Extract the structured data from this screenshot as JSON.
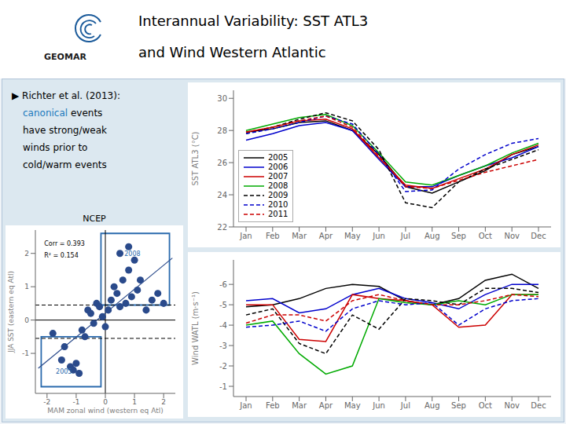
{
  "title": "Interannual Variability: SST ATL3",
  "subtitle": "and Wind Western Atlantic",
  "logo_text": "GEOMAR",
  "notes": [
    [
      {
        "text": "▶ Richter et al. (2013):"
      }
    ],
    [
      {
        "text": "canonical",
        "color": "#1a7abd"
      },
      {
        "text": " events"
      }
    ],
    [
      {
        "text": "have strong/weak"
      }
    ],
    [
      {
        "text": "winds prior to"
      }
    ],
    [
      {
        "text": "cold/warm events"
      }
    ]
  ],
  "chart_data": [
    {
      "type": "scatter",
      "title": "NCEP",
      "x_label": "MAM zonal wind (western eq Atl)",
      "y_label": "JJA SST (eastern eq Atl)",
      "x": [
        -1.8,
        -1.5,
        -1.4,
        -1.2,
        -1.1,
        -1.0,
        -0.9,
        -0.8,
        -0.7,
        -0.6,
        -0.5,
        -0.4,
        -0.3,
        -0.2,
        -0.1,
        0.0,
        0.1,
        0.2,
        0.3,
        0.4,
        0.5,
        0.6,
        0.7,
        0.8,
        0.9,
        1.0,
        1.1,
        1.2,
        1.4,
        1.6,
        1.8,
        2.0,
        0.5,
        0.8
      ],
      "values": [
        -0.4,
        -1.2,
        -0.8,
        -1.4,
        -1.5,
        -1.3,
        -1.6,
        -0.3,
        -0.5,
        0.3,
        0.2,
        -0.1,
        0.5,
        0.4,
        0.1,
        -0.2,
        0.3,
        0.6,
        1.0,
        0.8,
        0.4,
        1.2,
        0.5,
        1.5,
        0.7,
        1.8,
        0.9,
        1.2,
        0.3,
        0.6,
        0.8,
        0.5,
        2.0,
        2.2
      ],
      "color": "#2a4a8b",
      "fit_line": {
        "x": [
          -2.3,
          2.3
        ],
        "values": [
          -1.4459,
          1.8609
        ],
        "color": "#2a4a8b"
      },
      "reference_lines": [
        {
          "axis": "y",
          "value": 0,
          "color": "#000000",
          "line_style": "solid"
        },
        {
          "axis": "x",
          "value": 0,
          "color": "#000000",
          "line_style": "solid"
        },
        {
          "axis": "y",
          "value": 0.45,
          "color": "#000000",
          "line_style": "dashed"
        },
        {
          "axis": "y",
          "value": -0.55,
          "color": "#000000",
          "line_style": "dashed"
        }
      ],
      "boxes": [
        {
          "x": [
            -0.15,
            2.2
          ],
          "y": [
            0.45,
            2.6
          ],
          "color": "#2a6aad"
        },
        {
          "x": [
            -2.2,
            -0.15
          ],
          "y": [
            -2.0,
            -0.5
          ],
          "color": "#2a6aad"
        }
      ],
      "annotations": [
        {
          "text": "2008",
          "x": 0.6,
          "y": 2.0,
          "color": "#2a6aad"
        },
        {
          "text": "2005",
          "x": -1.75,
          "y": -1.55,
          "color": "#2a6aad"
        },
        {
          "text": "Corr = 0.393",
          "x": -2.15,
          "y": 2.3,
          "color": "#000000"
        },
        {
          "text": "R² = 0.154",
          "x": -2.15,
          "y": 1.95,
          "color": "#000000"
        }
      ],
      "xlim": [
        -2.4,
        2.4
      ],
      "ylim": [
        -2.2,
        2.7
      ],
      "xticks": [
        -2,
        -1,
        0,
        1,
        2
      ],
      "yticks": [
        -1,
        0,
        1,
        2
      ],
      "grid": false
    },
    {
      "type": "line",
      "y_label": "SST ATL3 (°C)",
      "categories": [
        "Jan",
        "Feb",
        "Mar",
        "Apr",
        "May",
        "Jun",
        "Jul",
        "Aug",
        "Sep",
        "Oct",
        "Nov",
        "Dec"
      ],
      "series": [
        {
          "name": "2005",
          "color": "#000000",
          "line_style": "solid",
          "values": [
            27.9,
            28.1,
            28.5,
            28.6,
            28.0,
            26.5,
            24.5,
            24.1,
            24.8,
            25.5,
            26.5,
            27.0
          ]
        },
        {
          "name": "2006",
          "color": "#0000cc",
          "line_style": "solid",
          "values": [
            27.4,
            27.8,
            28.3,
            28.5,
            28.0,
            26.2,
            24.5,
            24.5,
            25.2,
            25.8,
            26.3,
            27.0
          ]
        },
        {
          "name": "2007",
          "color": "#cc0000",
          "line_style": "solid",
          "values": [
            27.9,
            28.2,
            28.6,
            28.7,
            28.1,
            26.3,
            24.6,
            24.4,
            25.0,
            25.6,
            26.5,
            27.1
          ]
        },
        {
          "name": "2008",
          "color": "#00aa00",
          "line_style": "solid",
          "values": [
            28.0,
            28.4,
            28.8,
            29.0,
            28.3,
            26.6,
            24.8,
            24.6,
            25.2,
            25.8,
            26.6,
            27.2
          ]
        },
        {
          "name": "2009",
          "color": "#000000",
          "line_style": "dashed",
          "values": [
            27.8,
            28.2,
            28.7,
            29.1,
            28.6,
            26.8,
            23.5,
            23.2,
            24.8,
            25.6,
            26.2,
            26.8
          ]
        },
        {
          "name": "2010",
          "color": "#0000cc",
          "line_style": "dashed",
          "values": [
            27.8,
            28.1,
            28.5,
            28.9,
            28.4,
            26.5,
            24.2,
            24.3,
            25.6,
            26.5,
            27.2,
            27.5
          ]
        },
        {
          "name": "2011",
          "color": "#cc0000",
          "line_style": "dashed",
          "values": [
            27.9,
            28.2,
            28.6,
            28.9,
            28.2,
            26.4,
            24.5,
            24.4,
            24.9,
            25.4,
            25.8,
            26.2
          ]
        }
      ],
      "ylim": [
        22,
        30.5
      ],
      "yticks": [
        22,
        24,
        26,
        28,
        30
      ],
      "legend": "lower left",
      "grid": false
    },
    {
      "type": "line",
      "y_label": "Wind WATL (m·s⁻¹)",
      "categories": [
        "Jan",
        "Feb",
        "Mar",
        "Apr",
        "May",
        "Jun",
        "Jul",
        "Aug",
        "Sep",
        "Oct",
        "Nov",
        "Dec"
      ],
      "series": [
        {
          "name": "2005",
          "color": "#000000",
          "line_style": "solid",
          "values": [
            -4.9,
            -5.0,
            -5.3,
            -5.8,
            -6.0,
            -5.9,
            -5.2,
            -5.0,
            -5.3,
            -6.2,
            -6.5,
            -5.8
          ]
        },
        {
          "name": "2006",
          "color": "#0000cc",
          "line_style": "solid",
          "values": [
            -5.2,
            -5.3,
            -4.6,
            -4.8,
            -5.5,
            -5.8,
            -5.3,
            -5.1,
            -4.8,
            -5.5,
            -6.0,
            -6.0
          ]
        },
        {
          "name": "2007",
          "color": "#cc0000",
          "line_style": "solid",
          "values": [
            -5.0,
            -5.0,
            -3.3,
            -3.2,
            -5.5,
            -5.3,
            -5.2,
            -5.0,
            -3.9,
            -4.0,
            -5.5,
            -5.5
          ]
        },
        {
          "name": "2008",
          "color": "#00aa00",
          "line_style": "solid",
          "values": [
            -4.0,
            -4.2,
            -2.6,
            -1.6,
            -2.0,
            -5.3,
            -5.1,
            -5.0,
            -5.2,
            -5.0,
            -5.5,
            -5.5
          ]
        },
        {
          "name": "2009",
          "color": "#000000",
          "line_style": "dashed",
          "values": [
            -4.5,
            -4.8,
            -3.1,
            -2.6,
            -4.5,
            -3.8,
            -5.3,
            -5.2,
            -5.0,
            -5.8,
            -5.8,
            -5.6
          ]
        },
        {
          "name": "2010",
          "color": "#0000cc",
          "line_style": "dashed",
          "values": [
            -3.9,
            -4.0,
            -4.2,
            -3.7,
            -4.8,
            -5.2,
            -5.0,
            -5.1,
            -4.0,
            -4.8,
            -5.2,
            -5.3
          ]
        },
        {
          "name": "2011",
          "color": "#cc0000",
          "line_style": "dashed",
          "values": [
            -4.1,
            -4.5,
            -4.5,
            -4.2,
            -5.2,
            -5.5,
            -5.2,
            -5.0,
            -5.0,
            -5.2,
            -5.5,
            -5.4
          ]
        }
      ],
      "ylim": [
        -0.5,
        -7.2
      ],
      "yticks": [
        -6,
        -5,
        -4,
        -3,
        -2,
        -1
      ],
      "grid": false
    }
  ]
}
